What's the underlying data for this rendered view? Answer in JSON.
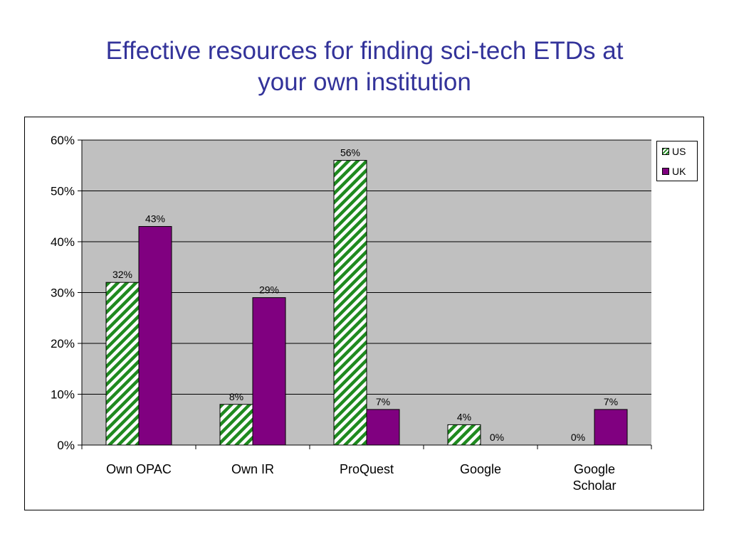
{
  "slide": {
    "title_line1": "Effective resources for finding sci-tech ETDs at",
    "title_line2": "your own institution"
  },
  "colors": {
    "title": "#33339a",
    "plot_background": "#c0c0c0",
    "us_stripe": "#1f8a1f",
    "uk": "#800080"
  },
  "chart_data": {
    "type": "bar",
    "title": "",
    "xlabel": "",
    "ylabel": "",
    "categories": [
      "Own OPAC",
      "Own IR",
      "ProQuest",
      "Google",
      "Google Scholar"
    ],
    "category_label_lines": [
      [
        "Own OPAC"
      ],
      [
        "Own IR"
      ],
      [
        "ProQuest"
      ],
      [
        "Google"
      ],
      [
        "Google",
        "Scholar"
      ]
    ],
    "series": [
      {
        "name": "US",
        "values": [
          32,
          8,
          56,
          4,
          0
        ],
        "labels": [
          "32%",
          "8%",
          "56%",
          "4%",
          "0%"
        ],
        "fill": "hatched-green"
      },
      {
        "name": "UK",
        "values": [
          43,
          29,
          7,
          0,
          7
        ],
        "labels": [
          "43%",
          "29%",
          "7%",
          "0%",
          "7%"
        ],
        "fill": "#800080"
      }
    ],
    "ylim": [
      0,
      60
    ],
    "yticks": [
      0,
      10,
      20,
      30,
      40,
      50,
      60
    ],
    "ytick_labels": [
      "0%",
      "10%",
      "20%",
      "30%",
      "40%",
      "50%",
      "60%"
    ],
    "grid": true,
    "legend_position": "top-right"
  }
}
